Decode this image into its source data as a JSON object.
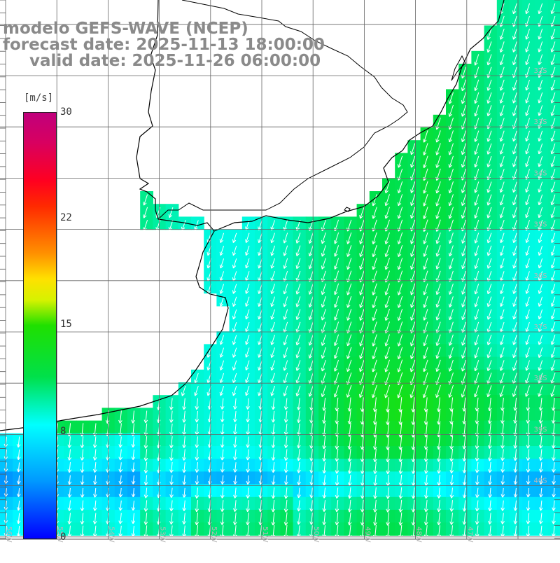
{
  "title": {
    "line1": "modelo GEFS-WAVE (NCEP)",
    "line2": "forecast date: 2025-11-13 18:00:00",
    "line3": "valid date: 2025-11-26 06:00:00"
  },
  "colorbar": {
    "unit": "[m/s]",
    "ticks": [
      "30",
      "22",
      "15",
      "8",
      "0"
    ],
    "tick_values": [
      30,
      22,
      15,
      8,
      0
    ],
    "range": [
      0,
      30
    ]
  },
  "grid": {
    "lat_labels": [
      "32S",
      "33S",
      "34S",
      "35S",
      "36S",
      "37S",
      "38S",
      "39S",
      "40S"
    ],
    "lon_labels": [
      "56W",
      "55W",
      "54W",
      "53W",
      "52W",
      "51W",
      "50W",
      "49W",
      "48W",
      "47W"
    ]
  },
  "colors": {
    "land": "#ffffff",
    "coastline": "#000000",
    "gridline": "#666666",
    "arrow": "#ffffff",
    "label": "#8a8a8a"
  },
  "wind_field": {
    "variable": "wind speed",
    "units": "m/s",
    "direction": "from NE (arrows pointing SW)",
    "max_speed_region": "south-east open ocean near 39S",
    "min_speed_region": "south-west near coast at 40S"
  }
}
